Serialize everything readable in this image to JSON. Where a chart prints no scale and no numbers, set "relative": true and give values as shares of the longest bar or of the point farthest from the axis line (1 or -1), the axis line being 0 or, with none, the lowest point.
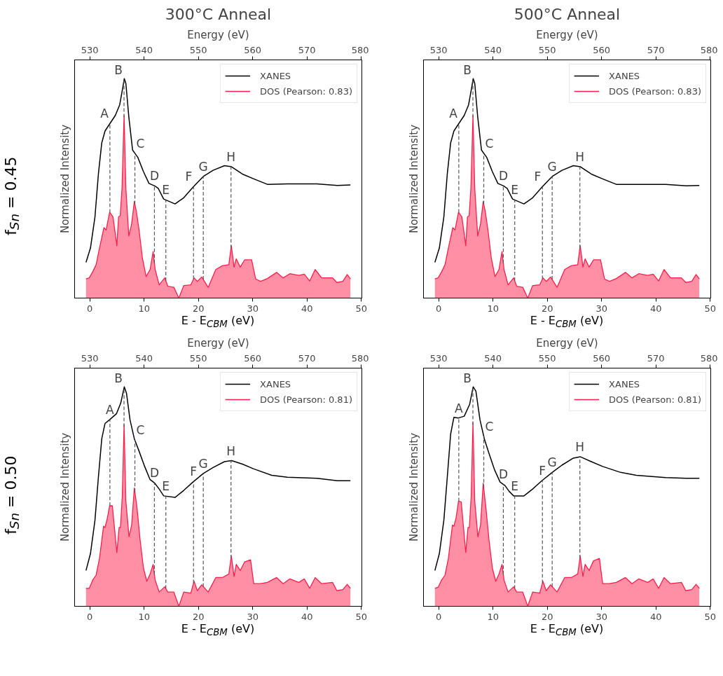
{
  "chart_data": [
    {
      "type": "line",
      "title": "300°C Anneal",
      "annotations": [
        "f$_{Sn}$ = 0.45"
      ],
      "xlabel": "E - E$_{CBM}$ (eV)",
      "ylabel": "Normalized Intensity",
      "x2label": "Energy (eV)",
      "xlim": [
        -2.8,
        50.1
      ],
      "xticks": [
        0,
        10,
        20,
        30,
        40,
        50
      ],
      "x2lim": [
        527.2,
        580.1
      ],
      "x2ticks": [
        530,
        540,
        550,
        560,
        570,
        580
      ],
      "relative": true,
      "legend": "top right",
      "series": [
        {
          "name": "XANES",
          "color": "#000000",
          "x": [
            -0.7,
            0.12,
            0.95,
            1.58,
            2.2,
            2.8,
            3.65,
            4.7,
            5.5,
            6.06,
            6.35,
            6.64,
            7.18,
            7.88,
            8.84,
            9.88,
            10.9,
            11.95,
            12.6,
            13.6,
            15.7,
            17.3,
            19.0,
            20.9,
            22.7,
            24.8,
            26.1,
            28.1,
            30.2,
            32.7,
            36.4,
            41.8,
            45.6,
            48.0
          ],
          "values": [
            0.163,
            0.228,
            0.37,
            0.565,
            0.707,
            0.761,
            0.793,
            0.832,
            0.88,
            0.957,
            1.0,
            0.978,
            0.826,
            0.674,
            0.641,
            0.576,
            0.522,
            0.511,
            0.5,
            0.451,
            0.429,
            0.457,
            0.505,
            0.554,
            0.582,
            0.603,
            0.598,
            0.565,
            0.543,
            0.518,
            0.52,
            0.52,
            0.513,
            0.515
          ]
        },
        {
          "name": "DOS (Pearson: 0.83)",
          "type": "area",
          "color": "#ff1f4b",
          "x": [
            -0.7,
            -0.1,
            0.54,
            1.16,
            1.78,
            2.6,
            3.0,
            3.65,
            4.27,
            4.98,
            5.3,
            5.6,
            5.93,
            6.31,
            6.64,
            7.18,
            7.7,
            8.2,
            8.6,
            9.1,
            9.67,
            10.37,
            11.1,
            11.66,
            12.03,
            12.78,
            13.8,
            14.36,
            15.48,
            16.4,
            17.3,
            18.6,
            19.2,
            19.8,
            20.6,
            21.8,
            23.2,
            24.4,
            25.6,
            26.06,
            26.56,
            26.97,
            27.7,
            28.5,
            29.8,
            30.54,
            31.45,
            32.7,
            34.4,
            35.6,
            36.85,
            38.5,
            39.5,
            40.5,
            41.5,
            42.7,
            44.7,
            45.5,
            46.6,
            47.4,
            48.0
          ],
          "values": [
            0.087,
            0.092,
            0.12,
            0.152,
            0.228,
            0.321,
            0.31,
            0.391,
            0.37,
            0.239,
            0.37,
            0.375,
            0.5,
            0.832,
            0.5,
            0.283,
            0.337,
            0.44,
            0.391,
            0.304,
            0.185,
            0.098,
            0.13,
            0.212,
            0.13,
            0.06,
            0.092,
            0.054,
            0.049,
            0,
            0.057,
            0.06,
            0.092,
            0.076,
            0.096,
            0.049,
            0.13,
            0.147,
            0.152,
            0.239,
            0.141,
            0.179,
            0.141,
            0.174,
            0.174,
            0.087,
            0.076,
            0.089,
            0.117,
            0.092,
            0.111,
            0.103,
            0.109,
            0.078,
            0.13,
            0.092,
            0.092,
            0.071,
            0.076,
            0.107,
            0.087
          ]
        }
      ],
      "ref_lines": [
        {
          "axis": "x",
          "value": 3.7,
          "label": "A",
          "color": "#555555",
          "line_style": "dashed"
        },
        {
          "axis": "x",
          "value": 6.3,
          "label": "B",
          "color": "#555555",
          "line_style": "dashed"
        },
        {
          "axis": "x",
          "value": 8.3,
          "label": "C",
          "color": "#555555",
          "line_style": "dashed"
        },
        {
          "axis": "x",
          "value": 11.9,
          "label": "D",
          "color": "#555555",
          "line_style": "dashed"
        },
        {
          "axis": "x",
          "value": 14.0,
          "label": "E",
          "color": "#555555",
          "line_style": "dashed"
        },
        {
          "axis": "x",
          "value": 19.1,
          "label": "F",
          "color": "#555555",
          "line_style": "dashed"
        },
        {
          "axis": "x",
          "value": 20.9,
          "label": "G",
          "color": "#555555",
          "line_style": "dashed"
        },
        {
          "axis": "x",
          "value": 26.0,
          "label": "H",
          "color": "#555555",
          "line_style": "dashed"
        }
      ]
    },
    {
      "type": "line",
      "title": "500°C Anneal",
      "xlabel": "E - E$_{CBM}$ (eV)",
      "ylabel": "Normalized Intensity",
      "x2label": "Energy (eV)",
      "xlim": [
        -2.8,
        50.1
      ],
      "xticks": [
        0,
        10,
        20,
        30,
        40,
        50
      ],
      "x2lim": [
        527.2,
        580.1
      ],
      "x2ticks": [
        530,
        540,
        550,
        560,
        570,
        580
      ],
      "relative": true,
      "legend": "top right",
      "series": [
        {
          "name": "XANES",
          "color": "#000000",
          "x": [
            -0.7,
            0.12,
            0.95,
            1.58,
            2.2,
            2.8,
            3.65,
            4.7,
            5.5,
            6.06,
            6.35,
            6.64,
            7.18,
            7.88,
            8.84,
            9.88,
            10.9,
            11.95,
            12.6,
            13.6,
            15.7,
            17.3,
            19.0,
            20.9,
            22.7,
            24.8,
            26.1,
            28.1,
            30.2,
            32.7,
            36.4,
            41.8,
            45.6,
            48.0
          ],
          "values": [
            0.163,
            0.228,
            0.37,
            0.565,
            0.707,
            0.761,
            0.793,
            0.832,
            0.88,
            0.957,
            1.0,
            0.978,
            0.826,
            0.674,
            0.641,
            0.576,
            0.522,
            0.511,
            0.5,
            0.451,
            0.429,
            0.457,
            0.505,
            0.554,
            0.582,
            0.603,
            0.598,
            0.565,
            0.543,
            0.518,
            0.518,
            0.518,
            0.511,
            0.513
          ]
        },
        {
          "name": "DOS (Pearson: 0.83)",
          "type": "area",
          "color": "#ff1f4b",
          "x": [
            -0.7,
            -0.1,
            0.54,
            1.16,
            1.78,
            2.6,
            3.0,
            3.65,
            4.27,
            4.98,
            5.3,
            5.6,
            5.93,
            6.31,
            6.64,
            7.18,
            7.7,
            8.2,
            8.6,
            9.1,
            9.67,
            10.37,
            11.1,
            11.66,
            12.03,
            12.78,
            13.8,
            14.36,
            15.48,
            16.4,
            17.3,
            18.6,
            19.2,
            19.8,
            20.6,
            21.8,
            23.2,
            24.4,
            25.6,
            26.06,
            26.56,
            26.97,
            27.7,
            28.5,
            29.8,
            30.54,
            31.45,
            32.7,
            34.4,
            35.6,
            36.85,
            38.5,
            39.5,
            40.5,
            41.5,
            42.7,
            44.7,
            45.5,
            46.6,
            47.4,
            48.0
          ],
          "values": [
            0.087,
            0.092,
            0.12,
            0.152,
            0.228,
            0.321,
            0.31,
            0.391,
            0.37,
            0.239,
            0.37,
            0.375,
            0.5,
            0.832,
            0.5,
            0.283,
            0.337,
            0.44,
            0.391,
            0.304,
            0.185,
            0.098,
            0.13,
            0.212,
            0.13,
            0.06,
            0.092,
            0.054,
            0.049,
            0,
            0.057,
            0.06,
            0.092,
            0.076,
            0.096,
            0.049,
            0.13,
            0.147,
            0.152,
            0.239,
            0.141,
            0.179,
            0.141,
            0.174,
            0.174,
            0.087,
            0.076,
            0.089,
            0.117,
            0.092,
            0.111,
            0.103,
            0.109,
            0.078,
            0.13,
            0.092,
            0.092,
            0.071,
            0.076,
            0.107,
            0.087
          ]
        }
      ],
      "ref_lines": [
        {
          "axis": "x",
          "value": 3.7,
          "label": "A",
          "color": "#555555",
          "line_style": "dashed"
        },
        {
          "axis": "x",
          "value": 6.3,
          "label": "B",
          "color": "#555555",
          "line_style": "dashed"
        },
        {
          "axis": "x",
          "value": 8.3,
          "label": "C",
          "color": "#555555",
          "line_style": "dashed"
        },
        {
          "axis": "x",
          "value": 11.9,
          "label": "D",
          "color": "#555555",
          "line_style": "dashed"
        },
        {
          "axis": "x",
          "value": 14.0,
          "label": "E",
          "color": "#555555",
          "line_style": "dashed"
        },
        {
          "axis": "x",
          "value": 19.1,
          "label": "F",
          "color": "#555555",
          "line_style": "dashed"
        },
        {
          "axis": "x",
          "value": 20.9,
          "label": "G",
          "color": "#555555",
          "line_style": "dashed"
        },
        {
          "axis": "x",
          "value": 26.0,
          "label": "H",
          "color": "#555555",
          "line_style": "dashed"
        }
      ]
    },
    {
      "type": "line",
      "annotations": [
        "f$_{Sn}$ = 0.50"
      ],
      "xlabel": "E - E$_{CBM}$ (eV)",
      "ylabel": "Normalized Intensity",
      "x2label": "Energy (eV)",
      "xlim": [
        -2.8,
        50.1
      ],
      "xticks": [
        0,
        10,
        20,
        30,
        40,
        50
      ],
      "x2lim": [
        527.2,
        580.1
      ],
      "x2ticks": [
        530,
        540,
        550,
        560,
        570,
        580
      ],
      "relative": true,
      "legend": "top right",
      "series": [
        {
          "name": "XANES",
          "color": "#000000",
          "x": [
            -0.7,
            0.12,
            0.95,
            1.58,
            2.2,
            2.8,
            3.65,
            4.9,
            5.7,
            6.35,
            6.76,
            7.4,
            8.2,
            9.05,
            10.1,
            11.1,
            11.95,
            12.78,
            13.6,
            15.7,
            17.3,
            19.0,
            20.9,
            22.7,
            24.8,
            26.1,
            28.1,
            30.2,
            33.5,
            36.4,
            41.8,
            45.6,
            48.0
          ],
          "values": [
            0.163,
            0.24,
            0.392,
            0.588,
            0.763,
            0.833,
            0.85,
            0.877,
            0.926,
            1.0,
            0.97,
            0.85,
            0.763,
            0.708,
            0.637,
            0.577,
            0.561,
            0.534,
            0.503,
            0.496,
            0.528,
            0.566,
            0.605,
            0.632,
            0.659,
            0.664,
            0.648,
            0.626,
            0.597,
            0.588,
            0.583,
            0.572,
            0.572
          ]
        },
        {
          "name": "DOS (Pearson: 0.81)",
          "type": "area",
          "color": "#ff1f4b",
          "x": [
            -0.7,
            -0.1,
            0.54,
            1.16,
            1.78,
            2.53,
            2.8,
            3.2,
            3.65,
            4.15,
            4.98,
            5.4,
            5.64,
            5.98,
            6.31,
            6.64,
            7.22,
            7.7,
            8.2,
            8.7,
            9.25,
            9.88,
            10.5,
            11.1,
            11.66,
            12.03,
            12.78,
            13.8,
            14.36,
            15.48,
            16.4,
            17.3,
            18.6,
            19.2,
            19.8,
            20.6,
            21.8,
            23.2,
            24.4,
            25.6,
            26.06,
            26.56,
            26.97,
            27.7,
            28.5,
            29.6,
            30.2,
            31.45,
            32.7,
            34.4,
            35.6,
            36.85,
            38.5,
            39.5,
            40.5,
            41.5,
            42.7,
            44.7,
            45.5,
            46.6,
            47.4,
            48.0
          ],
          "values": [
            0.082,
            0.082,
            0.12,
            0.142,
            0.218,
            0.365,
            0.359,
            0.398,
            0.458,
            0.458,
            0.245,
            0.359,
            0.359,
            0.501,
            0.828,
            0.479,
            0.316,
            0.37,
            0.539,
            0.447,
            0.305,
            0.174,
            0.114,
            0.147,
            0.191,
            0.12,
            0.065,
            0.089,
            0.065,
            0.065,
            0,
            0.065,
            0.06,
            0.114,
            0.071,
            0.098,
            0.065,
            0.131,
            0.131,
            0.147,
            0.229,
            0.136,
            0.191,
            0.163,
            0.202,
            0.212,
            0.103,
            0.103,
            0.109,
            0.131,
            0.103,
            0.125,
            0.109,
            0.125,
            0.082,
            0.131,
            0.103,
            0.109,
            0.071,
            0.076,
            0.1,
            0.082
          ]
        }
      ],
      "ref_lines": [
        {
          "axis": "x",
          "value": 3.7,
          "label": "A",
          "color": "#555555",
          "line_style": "dashed"
        },
        {
          "axis": "x",
          "value": 6.3,
          "label": "B",
          "color": "#555555",
          "line_style": "dashed"
        },
        {
          "axis": "x",
          "value": 8.3,
          "label": "C",
          "color": "#555555",
          "line_style": "dashed"
        },
        {
          "axis": "x",
          "value": 11.9,
          "label": "D",
          "color": "#555555",
          "line_style": "dashed"
        },
        {
          "axis": "x",
          "value": 14.0,
          "label": "E",
          "color": "#555555",
          "line_style": "dashed"
        },
        {
          "axis": "x",
          "value": 19.1,
          "label": "F",
          "color": "#555555",
          "line_style": "dashed"
        },
        {
          "axis": "x",
          "value": 20.9,
          "label": "G",
          "color": "#555555",
          "line_style": "dashed"
        },
        {
          "axis": "x",
          "value": 26.0,
          "label": "H",
          "color": "#555555",
          "line_style": "dashed"
        }
      ]
    },
    {
      "type": "line",
      "xlabel": "E - E$_{CBM}$ (eV)",
      "ylabel": "Normalized Intensity",
      "x2label": "Energy (eV)",
      "xlim": [
        -2.8,
        50.1
      ],
      "xticks": [
        0,
        10,
        20,
        30,
        40,
        50
      ],
      "x2lim": [
        527.2,
        580.1
      ],
      "x2ticks": [
        530,
        540,
        550,
        560,
        570,
        580
      ],
      "relative": true,
      "legend": "top right",
      "series": [
        {
          "name": "XANES",
          "color": "#000000",
          "x": [
            -0.7,
            0.12,
            0.95,
            1.58,
            2.2,
            2.8,
            3.65,
            4.7,
            5.7,
            6.35,
            6.85,
            7.6,
            8.4,
            9.25,
            10.3,
            11.3,
            12.2,
            13.0,
            13.8,
            15.7,
            17.3,
            19.0,
            20.9,
            22.7,
            24.8,
            26.1,
            28.1,
            30.2,
            33.5,
            36.4,
            41.8,
            45.6,
            48.0
          ],
          "values": [
            0.163,
            0.24,
            0.392,
            0.588,
            0.785,
            0.861,
            0.858,
            0.866,
            0.92,
            1.0,
            0.98,
            0.85,
            0.763,
            0.697,
            0.621,
            0.566,
            0.55,
            0.523,
            0.503,
            0.503,
            0.534,
            0.572,
            0.61,
            0.643,
            0.675,
            0.681,
            0.659,
            0.637,
            0.61,
            0.597,
            0.586,
            0.583,
            0.583
          ]
        },
        {
          "name": "DOS (Pearson: 0.81)",
          "type": "area",
          "color": "#ff1f4b",
          "x": [
            -0.7,
            -0.1,
            0.54,
            1.16,
            1.78,
            2.53,
            2.8,
            3.2,
            3.65,
            4.15,
            4.98,
            5.4,
            5.64,
            5.98,
            6.31,
            6.64,
            7.22,
            7.7,
            8.2,
            8.7,
            9.25,
            9.88,
            10.5,
            11.1,
            11.66,
            12.03,
            12.78,
            13.8,
            14.36,
            15.48,
            16.4,
            17.3,
            18.6,
            19.2,
            19.8,
            20.6,
            21.8,
            23.2,
            24.4,
            25.6,
            26.06,
            26.56,
            26.97,
            27.7,
            28.5,
            29.6,
            30.2,
            31.45,
            32.7,
            34.4,
            35.6,
            36.85,
            38.5,
            39.5,
            40.5,
            41.5,
            42.7,
            44.7,
            45.5,
            46.6,
            47.4,
            48.0
          ],
          "values": [
            0.082,
            0.087,
            0.12,
            0.142,
            0.218,
            0.37,
            0.365,
            0.403,
            0.479,
            0.475,
            0.245,
            0.359,
            0.359,
            0.501,
            0.837,
            0.479,
            0.316,
            0.37,
            0.561,
            0.447,
            0.305,
            0.174,
            0.114,
            0.147,
            0.191,
            0.12,
            0.065,
            0.089,
            0.065,
            0.065,
            0,
            0.065,
            0.06,
            0.114,
            0.071,
            0.098,
            0.065,
            0.131,
            0.131,
            0.147,
            0.229,
            0.136,
            0.191,
            0.163,
            0.207,
            0.218,
            0.103,
            0.103,
            0.109,
            0.131,
            0.103,
            0.125,
            0.109,
            0.125,
            0.082,
            0.131,
            0.103,
            0.109,
            0.071,
            0.076,
            0.1,
            0.082
          ]
        }
      ],
      "ref_lines": [
        {
          "axis": "x",
          "value": 3.7,
          "label": "A",
          "color": "#555555",
          "line_style": "dashed"
        },
        {
          "axis": "x",
          "value": 6.3,
          "label": "B",
          "color": "#555555",
          "line_style": "dashed"
        },
        {
          "axis": "x",
          "value": 8.3,
          "label": "C",
          "color": "#555555",
          "line_style": "dashed"
        },
        {
          "axis": "x",
          "value": 11.9,
          "label": "D",
          "color": "#555555",
          "line_style": "dashed"
        },
        {
          "axis": "x",
          "value": 14.0,
          "label": "E",
          "color": "#555555",
          "line_style": "dashed"
        },
        {
          "axis": "x",
          "value": 19.1,
          "label": "F",
          "color": "#555555",
          "line_style": "dashed"
        },
        {
          "axis": "x",
          "value": 20.9,
          "label": "G",
          "color": "#555555",
          "line_style": "dashed"
        },
        {
          "axis": "x",
          "value": 26.0,
          "label": "H",
          "color": "#555555",
          "line_style": "dashed"
        }
      ]
    }
  ]
}
